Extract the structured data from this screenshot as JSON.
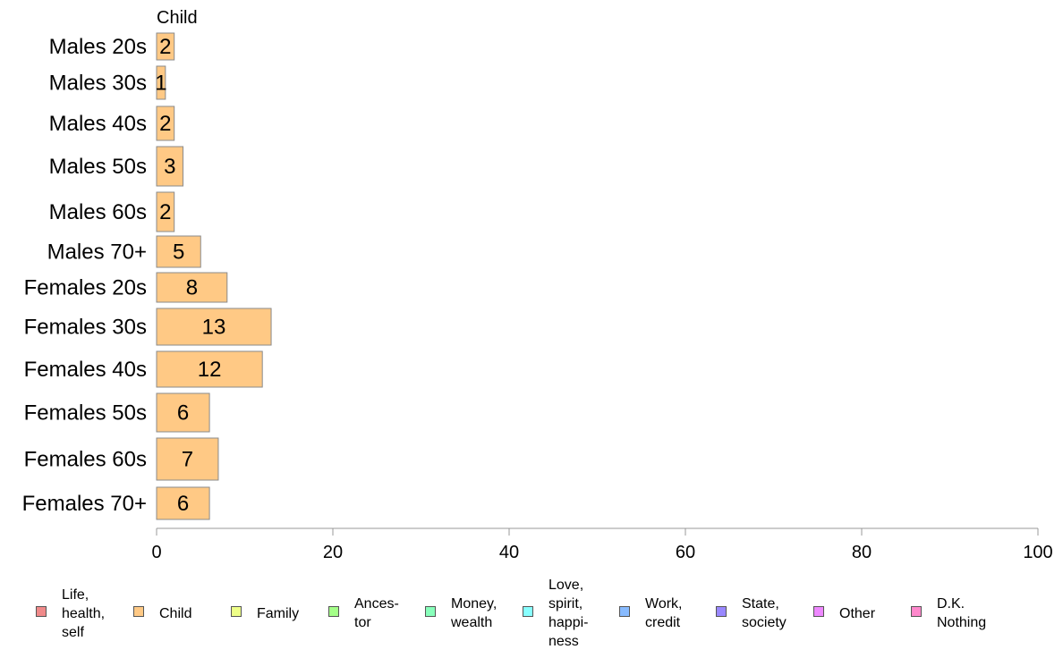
{
  "chart_data": {
    "type": "bar",
    "orientation": "horizontal",
    "series_label": "Child",
    "categories": [
      "Males 20s",
      "Males 30s",
      "Males 40s",
      "Males 50s",
      "Males 60s",
      "Males 70+",
      "Females 20s",
      "Females 30s",
      "Females 40s",
      "Females 50s",
      "Females 60s",
      "Females 70+"
    ],
    "values": [
      2,
      1,
      2,
      3,
      2,
      5,
      8,
      13,
      12,
      6,
      7,
      6
    ],
    "xlim": [
      0,
      100
    ],
    "xticks": [
      0,
      20,
      40,
      60,
      80,
      100
    ],
    "bar_color": "#FFC985",
    "grid": false,
    "legend_position": "bottom"
  },
  "legend": [
    {
      "label": "Life,\nhealth,\nself",
      "color": "#F08A8A"
    },
    {
      "label": "Child",
      "color": "#FFC985"
    },
    {
      "label": "Family",
      "color": "#EEFF88"
    },
    {
      "label": "Ances-\ntor",
      "color": "#A4FF88"
    },
    {
      "label": "Money,\nwealth",
      "color": "#88FFBB"
    },
    {
      "label": "Love,\nspirit,\nhappi-\nness",
      "color": "#88FFFF"
    },
    {
      "label": "Work,\ncredit",
      "color": "#88BBFF"
    },
    {
      "label": "State,\nsociety",
      "color": "#9988FF"
    },
    {
      "label": "Other",
      "color": "#EE88FF"
    },
    {
      "label": "D.K.\nNothing",
      "color": "#FF88CC"
    }
  ]
}
